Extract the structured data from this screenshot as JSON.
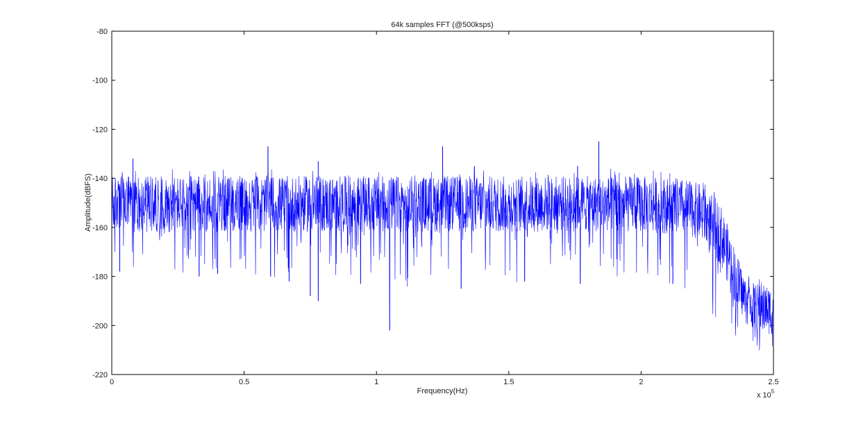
{
  "chart_data": {
    "type": "line",
    "title": "64k samples FFT (@500ksps)",
    "xlabel": "Frequency(Hz)",
    "ylabel": "Amplitude(dBFS)",
    "xlim": [
      0,
      250000
    ],
    "ylim": [
      -220,
      -80
    ],
    "x_ticks": [
      0,
      50000,
      100000,
      150000,
      200000,
      250000
    ],
    "x_tick_labels": [
      "0",
      "0.5",
      "1",
      "1.5",
      "2",
      "2.5"
    ],
    "x_exponent_label": "x 10",
    "x_exponent_power": "5",
    "y_ticks": [
      -220,
      -200,
      -180,
      -160,
      -140,
      -120,
      -100,
      -80
    ],
    "y_tick_labels": [
      "-220",
      "-200",
      "-180",
      "-160",
      "-140",
      "-120",
      "-100",
      "-80"
    ],
    "grid": false,
    "series_color": "#0000ff",
    "spectrum": {
      "noise_floor_envelope": {
        "x": [
          0,
          50000,
          100000,
          150000,
          200000,
          215000,
          222000,
          230000,
          236000,
          240000,
          245000,
          250000
        ],
        "upper": [
          -139,
          -139,
          -139,
          -139,
          -139,
          -140,
          -142,
          -150,
          -170,
          -182,
          -183,
          -184
        ],
        "lower": [
          -162,
          -162,
          -162,
          -162,
          -162,
          -163,
          -165,
          -175,
          -192,
          -200,
          -203,
          -204
        ],
        "occasional_dip_to": [
          -178,
          -180,
          -185,
          -183,
          -183,
          -186,
          -192,
          -198,
          -208,
          -212,
          -212,
          -214
        ]
      },
      "spurs": [
        {
          "x": 8000,
          "y": -132
        },
        {
          "x": 59000,
          "y": -127
        },
        {
          "x": 78000,
          "y": -133
        },
        {
          "x": 125000,
          "y": -127
        },
        {
          "x": 137000,
          "y": -135
        },
        {
          "x": 176000,
          "y": -135
        },
        {
          "x": 184000,
          "y": -125
        }
      ],
      "notable_dips": [
        {
          "x": 3000,
          "y": -178
        },
        {
          "x": 33000,
          "y": -180
        },
        {
          "x": 40000,
          "y": -179
        },
        {
          "x": 60000,
          "y": -180
        },
        {
          "x": 67000,
          "y": -182
        },
        {
          "x": 75000,
          "y": -188
        },
        {
          "x": 78000,
          "y": -190
        },
        {
          "x": 94000,
          "y": -183
        },
        {
          "x": 105000,
          "y": -202
        },
        {
          "x": 132000,
          "y": -185
        },
        {
          "x": 156000,
          "y": -182
        },
        {
          "x": 177000,
          "y": -183
        },
        {
          "x": 212000,
          "y": -183
        }
      ]
    }
  }
}
